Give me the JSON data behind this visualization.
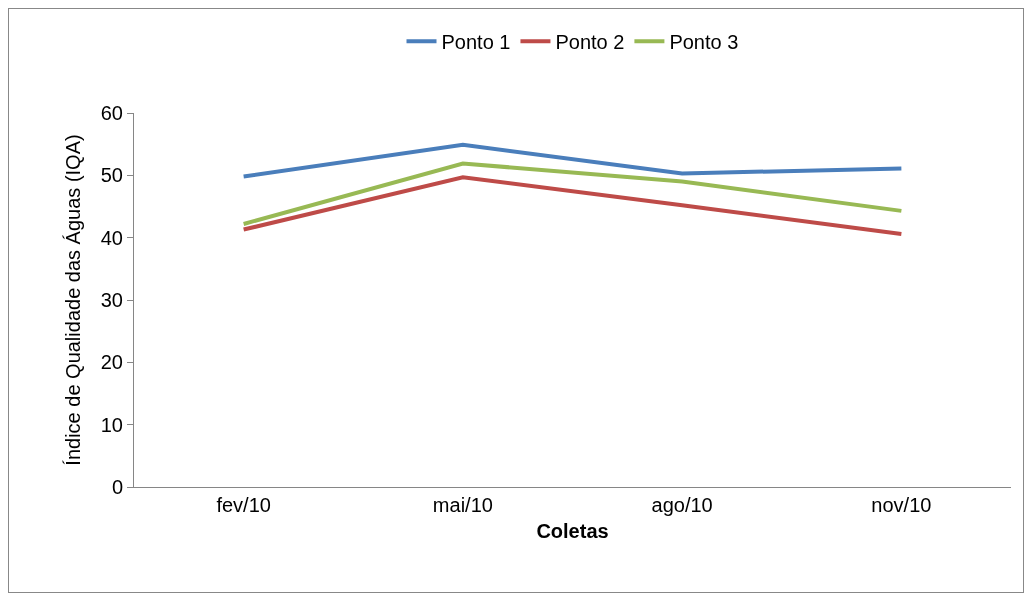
{
  "chart_data": {
    "type": "line",
    "xlabel": "Coletas",
    "ylabel": "Índice de Qualidade das Águas (IQA)",
    "categories": [
      "fev/10",
      "mai/10",
      "ago/10",
      "nov/10"
    ],
    "series": [
      {
        "name": "Ponto 1",
        "color": "#4a7ebb",
        "values": [
          49.8,
          54.9,
          50.3,
          51.1
        ]
      },
      {
        "name": "Ponto 2",
        "color": "#be4b48",
        "values": [
          41.3,
          49.7,
          45.2,
          40.6
        ]
      },
      {
        "name": "Ponto 3",
        "color": "#98b954",
        "values": [
          42.2,
          51.9,
          49.0,
          44.3
        ]
      }
    ],
    "ylim": [
      0,
      60
    ],
    "yticks": [
      0,
      10,
      20,
      30,
      40,
      50,
      60
    ],
    "grid": false,
    "legend": "top",
    "marker": "none",
    "line_style": "solid"
  }
}
